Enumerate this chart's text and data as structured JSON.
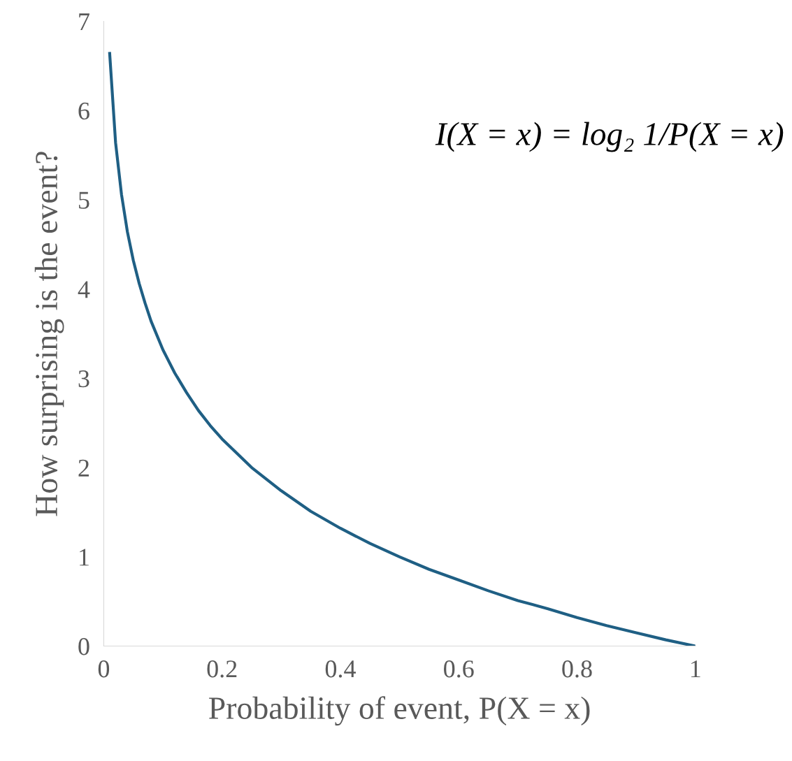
{
  "chart_data": {
    "type": "line",
    "xlabel": "Probability of event, P(X = x)",
    "ylabel": "How surprising is the event?",
    "annotations": [
      "I(X = x) = log₂ 1/P(X = x)"
    ],
    "x": [
      0.01,
      0.02,
      0.03,
      0.04,
      0.05,
      0.06,
      0.07,
      0.08,
      0.1,
      0.12,
      0.14,
      0.16,
      0.18,
      0.2,
      0.25,
      0.3,
      0.35,
      0.4,
      0.45,
      0.5,
      0.55,
      0.6,
      0.65,
      0.7,
      0.75,
      0.8,
      0.85,
      0.9,
      0.95,
      1.0
    ],
    "series": [
      {
        "color": "#1f5f84",
        "values": [
          6.64,
          5.64,
          5.06,
          4.64,
          4.32,
          4.06,
          3.84,
          3.64,
          3.32,
          3.06,
          2.84,
          2.64,
          2.47,
          2.32,
          2.0,
          1.74,
          1.51,
          1.32,
          1.15,
          1.0,
          0.86,
          0.74,
          0.62,
          0.51,
          0.42,
          0.32,
          0.23,
          0.15,
          0.07,
          0.0
        ]
      }
    ],
    "xlim": [
      0,
      1
    ],
    "ylim": [
      0,
      7
    ],
    "xticks": [
      0,
      0.2,
      0.4,
      0.6,
      0.8,
      1
    ],
    "yticks": [
      0,
      1,
      2,
      3,
      4,
      5,
      6,
      7
    ],
    "grid": false,
    "legend": false,
    "marker": "none",
    "line_style": "solid"
  }
}
